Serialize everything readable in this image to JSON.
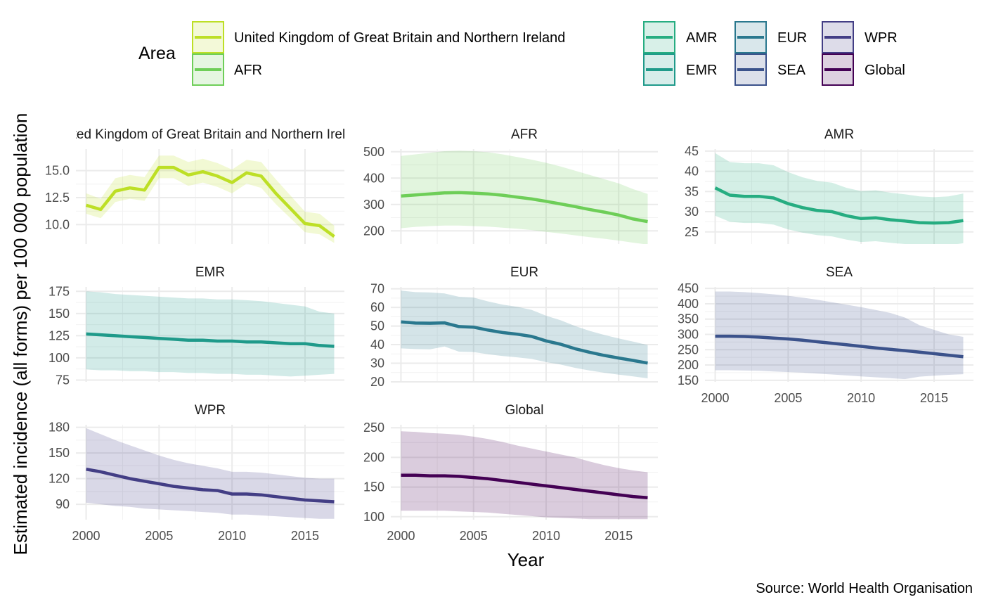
{
  "chart_data": {
    "type": "line",
    "subtype": "faceted line with confidence ribbon",
    "xlabel": "Year",
    "ylabel": "Estimated incidence (all forms) per 100 000 population",
    "caption": "Source: World Health Organisation",
    "legend": {
      "title": "Area",
      "position": "top",
      "entries": [
        "United Kingdom of Great Britain and Northern Ireland",
        "AFR",
        "AMR",
        "EMR",
        "EUR",
        "SEA",
        "WPR",
        "Global"
      ]
    },
    "grid": true,
    "facet_layout": "3 columns, free y scales",
    "x": [
      2000,
      2001,
      2002,
      2003,
      2004,
      2005,
      2006,
      2007,
      2008,
      2009,
      2010,
      2011,
      2012,
      2013,
      2014,
      2015,
      2016,
      2017
    ],
    "xlim": [
      1999.3,
      2017.7
    ],
    "x_ticks": [
      2000,
      2005,
      2010,
      2015
    ],
    "panels": [
      {
        "name": "United Kingdom of Great Britain and Northern Ireland",
        "color": "#BDDF26",
        "ylim": [
          8.2,
          17.0
        ],
        "y_ticks": [
          10.0,
          12.5,
          15.0
        ],
        "y_tick_labels": [
          "10.0",
          "12.5",
          "15.0"
        ],
        "values": [
          11.8,
          11.4,
          13.1,
          13.4,
          13.2,
          15.3,
          15.3,
          14.6,
          14.9,
          14.5,
          13.9,
          14.8,
          14.5,
          12.9,
          11.5,
          10.1,
          9.9,
          8.9
        ],
        "lower": [
          11.0,
          10.6,
          12.1,
          12.4,
          12.2,
          14.3,
          14.3,
          13.6,
          13.9,
          13.5,
          12.9,
          13.8,
          13.4,
          11.9,
          10.6,
          9.3,
          9.1,
          8.3
        ],
        "upper": [
          12.9,
          12.4,
          14.3,
          14.6,
          14.4,
          16.4,
          16.4,
          15.8,
          16.1,
          15.7,
          15.1,
          16.0,
          15.8,
          14.2,
          12.7,
          11.2,
          11.0,
          9.9
        ]
      },
      {
        "name": "AFR",
        "color": "#6ECE58",
        "ylim": [
          150,
          510
        ],
        "y_ticks": [
          200,
          300,
          400,
          500
        ],
        "y_tick_labels": [
          "200",
          "300",
          "400",
          "500"
        ],
        "values": [
          332,
          336,
          340,
          344,
          345,
          343,
          340,
          335,
          328,
          321,
          312,
          302,
          292,
          281,
          271,
          260,
          245,
          235
        ],
        "lower": [
          210,
          215,
          218,
          220,
          220,
          218,
          216,
          212,
          208,
          203,
          196,
          190,
          183,
          176,
          170,
          163,
          155,
          148
        ],
        "upper": [
          484,
          490,
          496,
          502,
          504,
          502,
          498,
          490,
          480,
          470,
          458,
          444,
          428,
          412,
          396,
          380,
          358,
          340
        ]
      },
      {
        "name": "AMR",
        "color": "#26AD81",
        "ylim": [
          22,
          45.5
        ],
        "y_ticks": [
          25,
          30,
          35,
          40,
          45
        ],
        "y_tick_labels": [
          "25",
          "30",
          "35",
          "40",
          "45"
        ],
        "values": [
          35.9,
          34.1,
          33.8,
          33.8,
          33.4,
          32.0,
          31.0,
          30.3,
          30.0,
          29.0,
          28.3,
          28.5,
          28.0,
          27.7,
          27.3,
          27.2,
          27.3,
          27.8
        ],
        "lower": [
          29.0,
          27.5,
          27.2,
          27.2,
          26.8,
          25.6,
          24.8,
          24.2,
          23.9,
          23.1,
          22.5,
          22.7,
          22.3,
          22.0,
          21.7,
          21.6,
          21.7,
          22.2
        ],
        "upper": [
          44.5,
          42.3,
          42.0,
          42.0,
          41.5,
          39.8,
          38.5,
          37.6,
          37.2,
          35.9,
          35.1,
          35.3,
          34.7,
          34.3,
          33.8,
          33.6,
          33.8,
          34.5
        ]
      },
      {
        "name": "EMR",
        "color": "#1F9A8A",
        "ylim": [
          73,
          180
        ],
        "y_ticks": [
          75,
          100,
          125,
          150,
          175
        ],
        "y_tick_labels": [
          "75",
          "100",
          "125",
          "150",
          "175"
        ],
        "values": [
          127,
          126,
          125,
          124,
          123,
          122,
          121,
          120,
          120,
          119,
          119,
          118,
          118,
          117,
          116,
          116,
          114,
          113
        ],
        "lower": [
          87,
          86,
          86,
          85,
          85,
          84,
          84,
          83,
          83,
          82,
          82,
          81,
          81,
          80,
          79,
          80,
          81,
          82
        ],
        "upper": [
          175,
          174,
          172,
          171,
          170,
          169,
          168,
          167,
          167,
          166,
          166,
          165,
          164,
          162,
          160,
          158,
          152,
          150
        ]
      },
      {
        "name": "EUR",
        "color": "#2A788E",
        "ylim": [
          20,
          71
        ],
        "y_ticks": [
          20,
          30,
          40,
          50,
          60,
          70
        ],
        "y_tick_labels": [
          "20",
          "30",
          "40",
          "50",
          "60",
          "70"
        ],
        "values": [
          52.2,
          51.6,
          51.5,
          51.7,
          49.7,
          49.4,
          47.8,
          46.5,
          45.6,
          44.4,
          42.0,
          40.2,
          37.8,
          35.9,
          34.2,
          32.8,
          31.5,
          30.1
        ],
        "lower": [
          38.0,
          37.6,
          37.5,
          39.0,
          36.2,
          36.0,
          34.8,
          33.9,
          33.2,
          32.3,
          30.6,
          29.3,
          27.5,
          26.1,
          24.9,
          23.9,
          22.9,
          21.9
        ],
        "upper": [
          69.0,
          68.2,
          68.0,
          67.5,
          65.7,
          65.3,
          63.2,
          61.5,
          60.3,
          58.7,
          55.5,
          53.1,
          50.0,
          47.4,
          45.2,
          43.3,
          41.6,
          39.8
        ]
      },
      {
        "name": "SEA",
        "color": "#3B528B",
        "ylim": [
          145,
          455
        ],
        "y_ticks": [
          150,
          200,
          250,
          300,
          350,
          400,
          450
        ],
        "y_tick_labels": [
          "150",
          "200",
          "250",
          "300",
          "350",
          "400",
          "450"
        ],
        "values": [
          294,
          294,
          293,
          291,
          288,
          285,
          281,
          276,
          271,
          266,
          261,
          256,
          251,
          247,
          242,
          237,
          232,
          227
        ],
        "lower": [
          183,
          183,
          182,
          181,
          179,
          177,
          175,
          172,
          169,
          166,
          163,
          160,
          157,
          154,
          162,
          165,
          168,
          170
        ],
        "upper": [
          440,
          440,
          438,
          435,
          431,
          426,
          420,
          413,
          405,
          397,
          389,
          380,
          370,
          355,
          330,
          315,
          300,
          292
        ]
      },
      {
        "name": "WPR",
        "color": "#433E85",
        "ylim": [
          72,
          183
        ],
        "y_ticks": [
          90,
          120,
          150,
          180
        ],
        "y_tick_labels": [
          "90",
          "120",
          "150",
          "180"
        ],
        "values": [
          131,
          128,
          124,
          120,
          117,
          114,
          111,
          109,
          107,
          106,
          102,
          102,
          101,
          99,
          97,
          95,
          94,
          93
        ],
        "lower": [
          92,
          90,
          88,
          87,
          85,
          84,
          83,
          82,
          81,
          80,
          78,
          78,
          77,
          76,
          75,
          74,
          73,
          73
        ],
        "upper": [
          179,
          172,
          165,
          159,
          153,
          147,
          142,
          138,
          135,
          132,
          128,
          128,
          127,
          125,
          123,
          121,
          120,
          120
        ]
      },
      {
        "name": "Global",
        "color": "#440154",
        "ylim": [
          95,
          255
        ],
        "y_ticks": [
          100,
          150,
          200,
          250
        ],
        "y_tick_labels": [
          "100",
          "150",
          "200",
          "250"
        ],
        "values": [
          170,
          170,
          169,
          169,
          168,
          166,
          164,
          161,
          158,
          155,
          152,
          149,
          146,
          143,
          140,
          137,
          134,
          132
        ],
        "lower": [
          110,
          110,
          110,
          110,
          109,
          108,
          107,
          105,
          103,
          101,
          99,
          98,
          97,
          96,
          96,
          96,
          96,
          96
        ],
        "upper": [
          244,
          243,
          241,
          240,
          238,
          235,
          231,
          226,
          220,
          215,
          210,
          205,
          200,
          193,
          187,
          182,
          178,
          175
        ]
      }
    ]
  }
}
